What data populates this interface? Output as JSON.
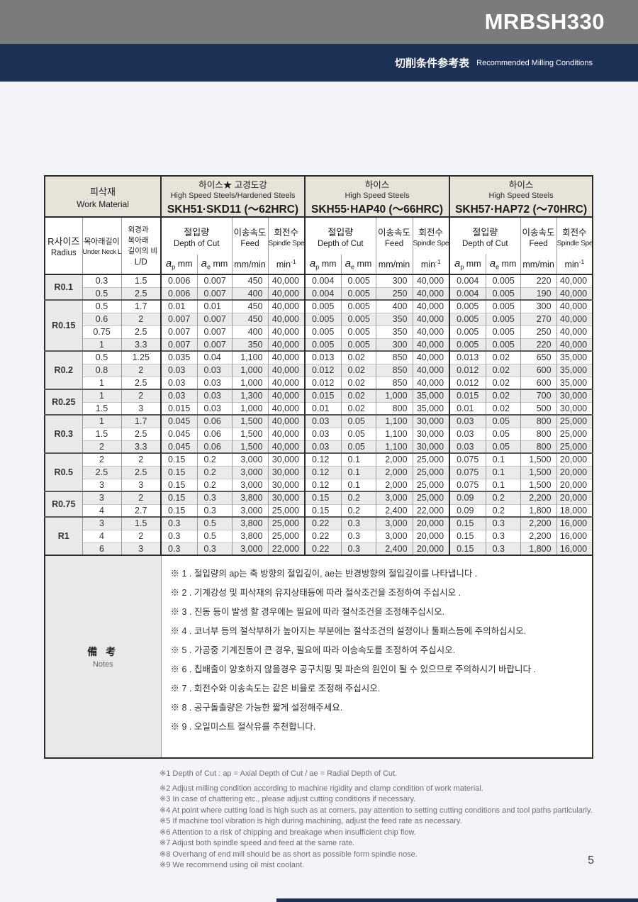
{
  "header": {
    "model": "MRBSH330",
    "section_title_cjk": "切削条件参考表",
    "section_title_en": "Recommended Milling Conditions"
  },
  "table": {
    "work_material": {
      "cjk": "피삭재",
      "en": "Work Material"
    },
    "radius": {
      "cjk": "R사이즈",
      "en": "Radius"
    },
    "under_neck": {
      "cjk": "목아래길이",
      "en": "Under Neck Length"
    },
    "ld": {
      "line1": "외경과",
      "line2": "목아래",
      "line3": "길이의 비",
      "label": "L/D"
    },
    "groups": [
      {
        "cjk": "하이스★ 고경도강",
        "en": "High Speed Steels/Hardened Steels",
        "grade": "SKH51·SKD11 (～62HRC)"
      },
      {
        "cjk": "하이스",
        "en": "High Speed Steels",
        "grade": "SKH55·HAP40 (～66HRC)"
      },
      {
        "cjk": "하이스",
        "en": "High Speed Steels",
        "grade": "SKH57·HAP72 (～70HRC)"
      }
    ],
    "subcols": {
      "depth_cjk": "절입량",
      "depth_en": "Depth of Cut",
      "feed_cjk": "이송속도",
      "feed_en": "Feed",
      "speed_cjk": "회전수",
      "speed_en": "Spindle Speed"
    },
    "units": {
      "a": "a",
      "p": "p",
      "e": "e",
      "mm": "mm",
      "feed": "mm/min",
      "min": "min",
      "sup": "-1"
    },
    "row_groups": [
      {
        "radius": "R0.1",
        "rows": [
          {
            "unl": "0.3",
            "ld": "1.5",
            "v": [
              "0.006",
              "0.007",
              "450",
              "40,000",
              "0.004",
              "0.005",
              "300",
              "40,000",
              "0.004",
              "0.005",
              "220",
              "40,000"
            ]
          },
          {
            "unl": "0.5",
            "ld": "2.5",
            "v": [
              "0.006",
              "0.007",
              "400",
              "40,000",
              "0.004",
              "0.005",
              "250",
              "40,000",
              "0.004",
              "0.005",
              "190",
              "40,000"
            ]
          }
        ]
      },
      {
        "radius": "R0.15",
        "rows": [
          {
            "unl": "0.5",
            "ld": "1.7",
            "v": [
              "0.01",
              "0.01",
              "450",
              "40,000",
              "0.005",
              "0.005",
              "400",
              "40,000",
              "0.005",
              "0.005",
              "300",
              "40,000"
            ]
          },
          {
            "unl": "0.6",
            "ld": "2",
            "v": [
              "0.007",
              "0.007",
              "450",
              "40,000",
              "0.005",
              "0.005",
              "350",
              "40,000",
              "0.005",
              "0.005",
              "270",
              "40,000"
            ]
          },
          {
            "unl": "0.75",
            "ld": "2.5",
            "v": [
              "0.007",
              "0.007",
              "400",
              "40,000",
              "0.005",
              "0.005",
              "350",
              "40,000",
              "0.005",
              "0.005",
              "250",
              "40,000"
            ]
          },
          {
            "unl": "1",
            "ld": "3.3",
            "v": [
              "0.007",
              "0.007",
              "350",
              "40,000",
              "0.005",
              "0.005",
              "300",
              "40,000",
              "0.005",
              "0.005",
              "220",
              "40,000"
            ]
          }
        ]
      },
      {
        "radius": "R0.2",
        "rows": [
          {
            "unl": "0.5",
            "ld": "1.25",
            "v": [
              "0.035",
              "0.04",
              "1,100",
              "40,000",
              "0.013",
              "0.02",
              "850",
              "40,000",
              "0.013",
              "0.02",
              "650",
              "35,000"
            ]
          },
          {
            "unl": "0.8",
            "ld": "2",
            "v": [
              "0.03",
              "0.03",
              "1,000",
              "40,000",
              "0.012",
              "0.02",
              "850",
              "40,000",
              "0.012",
              "0.02",
              "600",
              "35,000"
            ]
          },
          {
            "unl": "1",
            "ld": "2.5",
            "v": [
              "0.03",
              "0.03",
              "1,000",
              "40,000",
              "0.012",
              "0.02",
              "850",
              "40,000",
              "0.012",
              "0.02",
              "600",
              "35,000"
            ]
          }
        ]
      },
      {
        "radius": "R0.25",
        "rows": [
          {
            "unl": "1",
            "ld": "2",
            "v": [
              "0.03",
              "0.03",
              "1,300",
              "40,000",
              "0.015",
              "0.02",
              "1,000",
              "35,000",
              "0.015",
              "0.02",
              "700",
              "30,000"
            ]
          },
          {
            "unl": "1.5",
            "ld": "3",
            "v": [
              "0.015",
              "0.03",
              "1,000",
              "40,000",
              "0.01",
              "0.02",
              "800",
              "35,000",
              "0.01",
              "0.02",
              "500",
              "30,000"
            ]
          }
        ]
      },
      {
        "radius": "R0.3",
        "rows": [
          {
            "unl": "1",
            "ld": "1.7",
            "v": [
              "0.045",
              "0.06",
              "1,500",
              "40,000",
              "0.03",
              "0.05",
              "1,100",
              "30,000",
              "0.03",
              "0.05",
              "800",
              "25,000"
            ]
          },
          {
            "unl": "1.5",
            "ld": "2.5",
            "v": [
              "0.045",
              "0.06",
              "1,500",
              "40,000",
              "0.03",
              "0.05",
              "1,100",
              "30,000",
              "0.03",
              "0.05",
              "800",
              "25,000"
            ]
          },
          {
            "unl": "2",
            "ld": "3.3",
            "v": [
              "0.045",
              "0.06",
              "1,500",
              "40,000",
              "0.03",
              "0.05",
              "1,100",
              "30,000",
              "0.03",
              "0.05",
              "800",
              "25,000"
            ]
          }
        ]
      },
      {
        "radius": "R0.5",
        "rows": [
          {
            "unl": "2",
            "ld": "2",
            "v": [
              "0.15",
              "0.2",
              "3,000",
              "30,000",
              "0.12",
              "0.1",
              "2,000",
              "25,000",
              "0.075",
              "0.1",
              "1,500",
              "20,000"
            ]
          },
          {
            "unl": "2.5",
            "ld": "2.5",
            "v": [
              "0.15",
              "0.2",
              "3,000",
              "30,000",
              "0.12",
              "0.1",
              "2,000",
              "25,000",
              "0.075",
              "0.1",
              "1,500",
              "20,000"
            ]
          },
          {
            "unl": "3",
            "ld": "3",
            "v": [
              "0.15",
              "0.2",
              "3,000",
              "30,000",
              "0.12",
              "0.1",
              "2,000",
              "25,000",
              "0.075",
              "0.1",
              "1,500",
              "20,000"
            ]
          }
        ]
      },
      {
        "radius": "R0.75",
        "rows": [
          {
            "unl": "3",
            "ld": "2",
            "v": [
              "0.15",
              "0.3",
              "3,800",
              "30,000",
              "0.15",
              "0.2",
              "3,000",
              "25,000",
              "0.09",
              "0.2",
              "2,200",
              "20,000"
            ]
          },
          {
            "unl": "4",
            "ld": "2.7",
            "v": [
              "0.15",
              "0.3",
              "3,000",
              "25,000",
              "0.15",
              "0.2",
              "2,400",
              "22,000",
              "0.09",
              "0.2",
              "1,800",
              "18,000"
            ]
          }
        ]
      },
      {
        "radius": "R1",
        "rows": [
          {
            "unl": "3",
            "ld": "1.5",
            "v": [
              "0.3",
              "0.5",
              "3,800",
              "25,000",
              "0.22",
              "0.3",
              "3,000",
              "20,000",
              "0.15",
              "0.3",
              "2,200",
              "16,000"
            ]
          },
          {
            "unl": "4",
            "ld": "2",
            "v": [
              "0.3",
              "0.5",
              "3,800",
              "25,000",
              "0.22",
              "0.3",
              "3,000",
              "20,000",
              "0.15",
              "0.3",
              "2,200",
              "16,000"
            ]
          },
          {
            "unl": "6",
            "ld": "3",
            "v": [
              "0.3",
              "0.3",
              "3,000",
              "22,000",
              "0.22",
              "0.3",
              "2,400",
              "20,000",
              "0.15",
              "0.3",
              "1,800",
              "16,000"
            ]
          }
        ]
      }
    ]
  },
  "notes": {
    "label_cjk": "備 考",
    "label_en": "Notes",
    "items": [
      "※ 1 . 절입량의 ap는 축 방향의 절입깊이, ae는 반경방향의 절입깊이를 나타냅니다 .",
      "※ 2 . 기계강성 및 피삭재의 유지상태등에 따라 절삭조건을 조정하여 주십시오 .",
      "※ 3 . 진동 등이 발생 할 경우에는 필요에 따라 절삭조건을 조정해주십시오.",
      "※ 4 . 코너부 등의 절삭부하가 높아지는 부분에는 절삭조건의 설정이나 툴패스등에 주의하십시오.",
      "※ 5 . 가공중 기계진동이 큰 경우, 필요에 따라 이송속도를 조정하여 주십시오.",
      "※ 6 . 칩배출이 양호하지 않을경우 공구치핑 및 파손의 원인이 될 수 있으므로 주의하시기 바랍니다 .",
      "※ 7 . 회전수와 이송속도는 같은 비율로 조정해 주십시오.",
      "※ 8 . 공구돌출량은 가능한 짧게 설정해주세요.",
      "※ 9 . 오일미스트 절삭유를 추천합니다."
    ]
  },
  "footnotes": [
    "※1 Depth of Cut : ap = Axial Depth of Cut / ae = Radial Depth of Cut.",
    "※2 Adjust milling condition according to machine rigidity and clamp condition of work material.",
    "※3 In case of chattering etc., please adjust cutting conditions if necessary.",
    "※4 At point where cutting load is high such as at corners, pay attention to setting cutting conditions and tool paths particularly.",
    "※5 If machine tool vibration is high during machining, adjust the feed rate as necessary.",
    "※6 Attention to a risk of chipping and breakage when insufficient chip flow.",
    "※7 Adjust both spindle speed and feed at the same rate.",
    "※8 Overhang of end mill should be as short as possible form spindle nose.",
    "※9 We recommend using oil mist coolant."
  ],
  "page_number": "5",
  "colors": {
    "accent_navy": "#1d3156",
    "header_gray": "#7b7b7b",
    "header_beige": "#e7e3d9",
    "stripe_gray": "#ebebeb",
    "label_gray": "#e9e9e9"
  }
}
